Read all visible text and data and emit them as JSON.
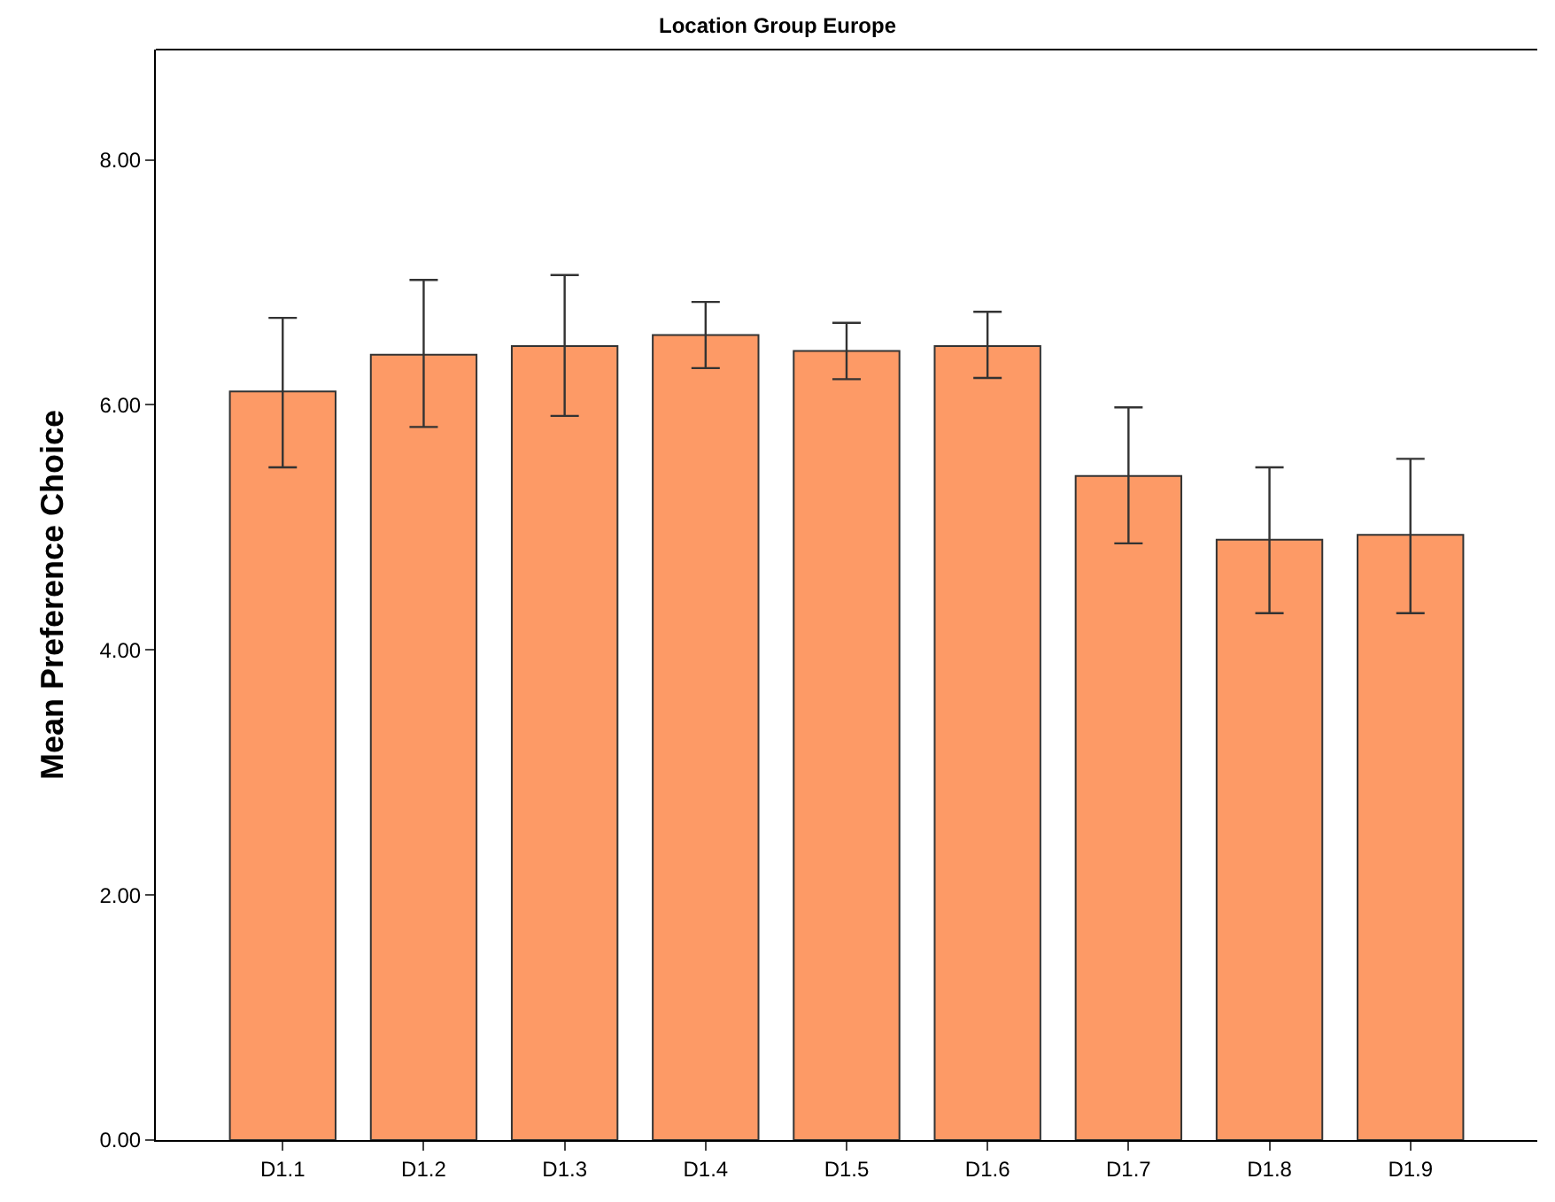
{
  "chart_data": {
    "type": "bar",
    "title": "Location Group Europe",
    "ylabel": "Mean Preference Choice",
    "categories": [
      "D1.1",
      "D1.2",
      "D1.3",
      "D1.4",
      "D1.5",
      "D1.6",
      "D1.7",
      "D1.8",
      "D1.9"
    ],
    "values": [
      6.11,
      6.41,
      6.48,
      6.57,
      6.44,
      6.48,
      5.42,
      4.9,
      4.94
    ],
    "errors": [
      [
        5.49,
        6.71
      ],
      [
        5.82,
        7.02
      ],
      [
        5.91,
        7.06
      ],
      [
        6.3,
        6.84
      ],
      [
        6.21,
        6.67
      ],
      [
        6.22,
        6.76
      ],
      [
        4.87,
        5.98
      ],
      [
        4.3,
        5.49
      ],
      [
        4.3,
        5.56
      ]
    ],
    "color": "#fd9a66",
    "ylim": [
      0,
      8.9
    ],
    "yticks": [
      {
        "value": 0,
        "label": "0.00"
      },
      {
        "value": 2,
        "label": "2.00"
      },
      {
        "value": 4,
        "label": "4.00"
      },
      {
        "value": 6,
        "label": "6.00"
      },
      {
        "value": 8,
        "label": "8.00"
      }
    ]
  }
}
